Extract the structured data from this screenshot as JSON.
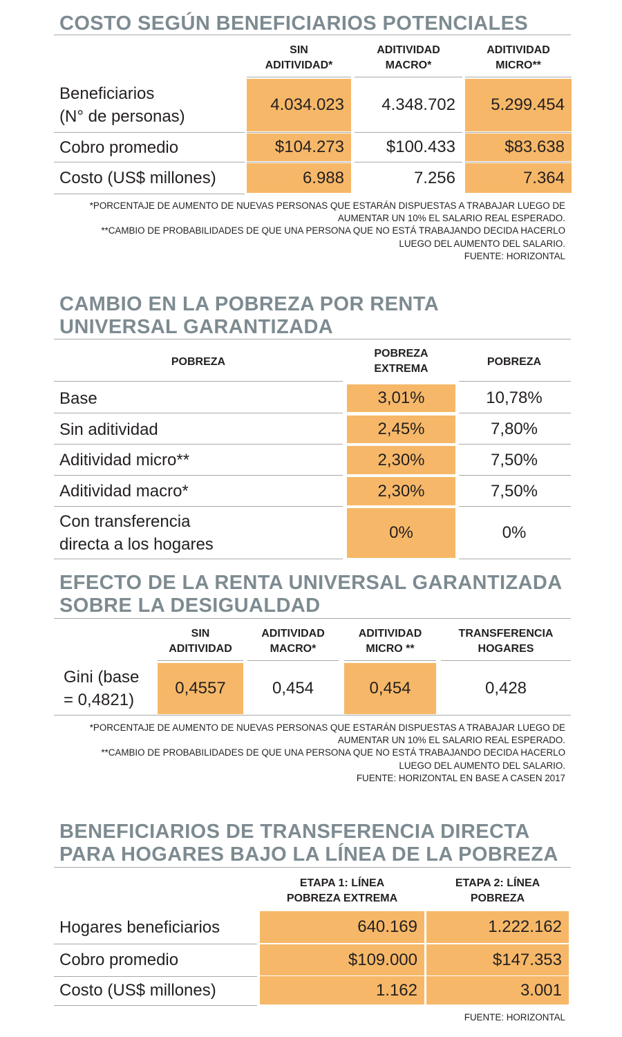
{
  "t1": {
    "title": "COSTO SEGÚN BENEFICIARIOS POTENCIALES",
    "headers": [
      "SIN\nADITIVIDAD*",
      "ADITIVIDAD\nMACRO*",
      "ADITIVIDAD\nMICRO**"
    ],
    "rows": [
      {
        "label": "Beneficiarios\n(N° de personas)",
        "values": [
          "4.034.023",
          "4.348.702",
          "5.299.454"
        ]
      },
      {
        "label": "Cobro promedio",
        "values": [
          "$104.273",
          "$100.433",
          "$83.638"
        ]
      },
      {
        "label": "Costo (US$ millones)",
        "values": [
          "6.988",
          "7.256",
          "7.364"
        ]
      }
    ],
    "notes": [
      "*PORCENTAJE DE AUMENTO DE NUEVAS PERSONAS QUE ESTARÁN DISPUESTAS A TRABAJAR LUEGO DE",
      "AUMENTAR UN 10% EL SALARIO REAL ESPERADO.",
      "**CAMBIO DE PROBABILIDADES DE QUE UNA PERSONA QUE NO ESTÁ TRABAJANDO DECIDA HACERLO",
      "LUEGO DEL AUMENTO DEL SALARIO.",
      "FUENTE: HORIZONTAL"
    ]
  },
  "t2": {
    "title": "CAMBIO EN LA POBREZA POR RENTA\nUNIVERSAL GARANTIZADA",
    "headers": [
      "POBREZA",
      "POBREZA\nEXTREMA",
      "POBREZA"
    ],
    "rows": [
      {
        "label": "Base",
        "values": [
          "3,01%",
          "10,78%"
        ]
      },
      {
        "label": "Sin aditividad",
        "values": [
          "2,45%",
          "7,80%"
        ]
      },
      {
        "label": "Aditividad micro**",
        "values": [
          "2,30%",
          "7,50%"
        ]
      },
      {
        "label": "Aditividad macro*",
        "values": [
          "2,30%",
          "7,50%"
        ]
      },
      {
        "label": "Con transferencia\ndirecta a los hogares",
        "values": [
          "0%",
          "0%"
        ]
      }
    ]
  },
  "t3": {
    "title": "EFECTO DE LA RENTA UNIVERSAL GARANTIZADA\nSOBRE LA DESIGUALDAD",
    "headers": [
      "SIN\nADITIVIDAD",
      "ADITIVIDAD\nMACRO*",
      "ADITIVIDAD\nMICRO **",
      "TRANSFERENCIA\nHOGARES"
    ],
    "rows": [
      {
        "label": "Gini (base\n= 0,4821)",
        "values": [
          "0,4557",
          "0,454",
          "0,454",
          "0,428"
        ]
      }
    ],
    "notes": [
      "*PORCENTAJE DE AUMENTO DE NUEVAS PERSONAS QUE ESTARÁN DISPUESTAS A TRABAJAR LUEGO DE",
      "AUMENTAR UN 10% EL SALARIO REAL ESPERADO.",
      "**CAMBIO DE PROBABILIDADES DE QUE UNA PERSONA QUE NO ESTÁ TRABAJANDO DECIDA HACERLO",
      "LUEGO DEL AUMENTO DEL SALARIO.",
      "FUENTE: HORIZONTAL EN BASE A CASEN 2017"
    ]
  },
  "t4": {
    "title": "BENEFICIARIOS DE TRANSFERENCIA DIRECTA\nPARA HOGARES BAJO LA LÍNEA DE LA POBREZA",
    "headers": [
      "ETAPA 1: LÍNEA\nPOBREZA EXTREMA",
      "ETAPA 2: LÍNEA\nPOBREZA"
    ],
    "rows": [
      {
        "label": "Hogares beneficiarios",
        "values": [
          "640.169",
          "1.222.162"
        ]
      },
      {
        "label": "Cobro promedio",
        "values": [
          "$109.000",
          "$147.353"
        ]
      },
      {
        "label": "Costo (US$ millones)",
        "values": [
          "1.162",
          "3.001"
        ]
      }
    ],
    "notes": [
      "FUENTE: HORIZONTAL"
    ]
  },
  "colors": {
    "highlight": "#f6b868",
    "title": "#7d8b91",
    "rule": "#a8a8a8",
    "text": "#231f20"
  }
}
